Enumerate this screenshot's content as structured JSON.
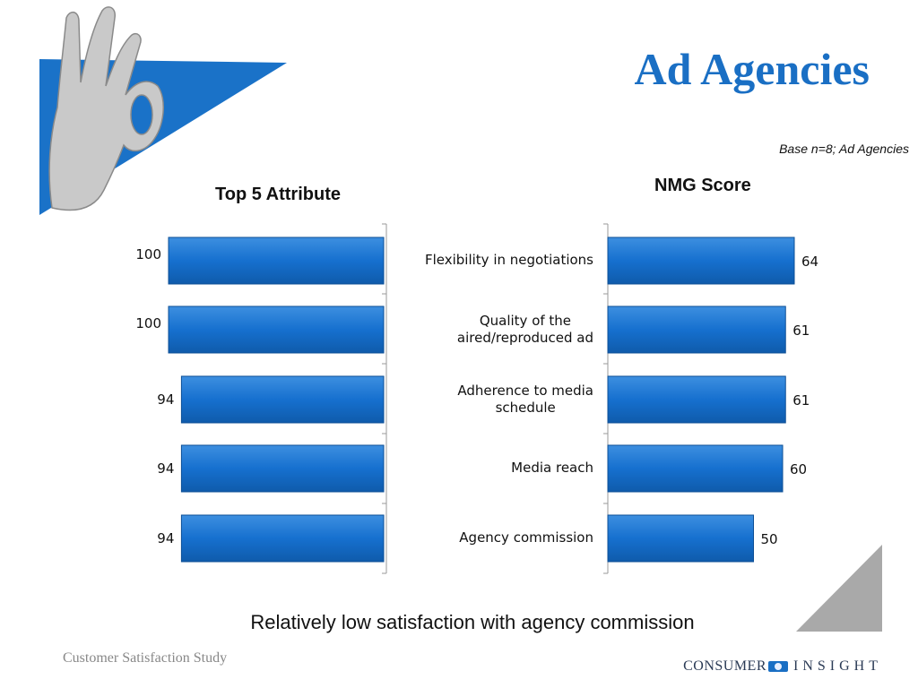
{
  "title": "Ad Agencies",
  "base_note": "Base n=8; Ad Agencies",
  "conclusion": "Relatively low satisfaction with agency commission",
  "footer": {
    "study": "Customer Satisfaction Study",
    "logo_word1": "CONSUMER",
    "logo_word2": "INSIGHT"
  },
  "colors": {
    "bar": "#1670cf",
    "title": "#1a6fc4",
    "accent_blue": "#1a72c8"
  },
  "decor": {
    "hand_icon": "ok-hand-icon"
  },
  "chart_data": [
    {
      "type": "bar",
      "orientation": "horizontal",
      "title": "Top 5  Attribute",
      "categories": [
        "Flexibility in negotiations",
        "Quality of the aired/reproduced ad",
        "Adherence to media schedule",
        "Media reach",
        "Agency commission"
      ],
      "values": [
        100,
        100,
        94,
        94,
        94
      ],
      "direction": "right-to-left",
      "xlim": [
        0,
        100
      ],
      "grid": false
    },
    {
      "type": "bar",
      "orientation": "horizontal",
      "title": "NMG Score",
      "categories": [
        "Flexibility in negotiations",
        "Quality of the aired/reproduced ad",
        "Adherence to media schedule",
        "Media reach",
        "Agency commission"
      ],
      "values": [
        64,
        61,
        61,
        60,
        50
      ],
      "direction": "left-to-right",
      "xlim": [
        0,
        100
      ],
      "grid": false
    }
  ],
  "category_labels": [
    [
      "Flexibility in negotiations"
    ],
    [
      "Quality of the",
      "aired/reproduced ad"
    ],
    [
      "Adherence to media",
      "schedule"
    ],
    [
      "Media reach"
    ],
    [
      "Agency commission"
    ]
  ]
}
